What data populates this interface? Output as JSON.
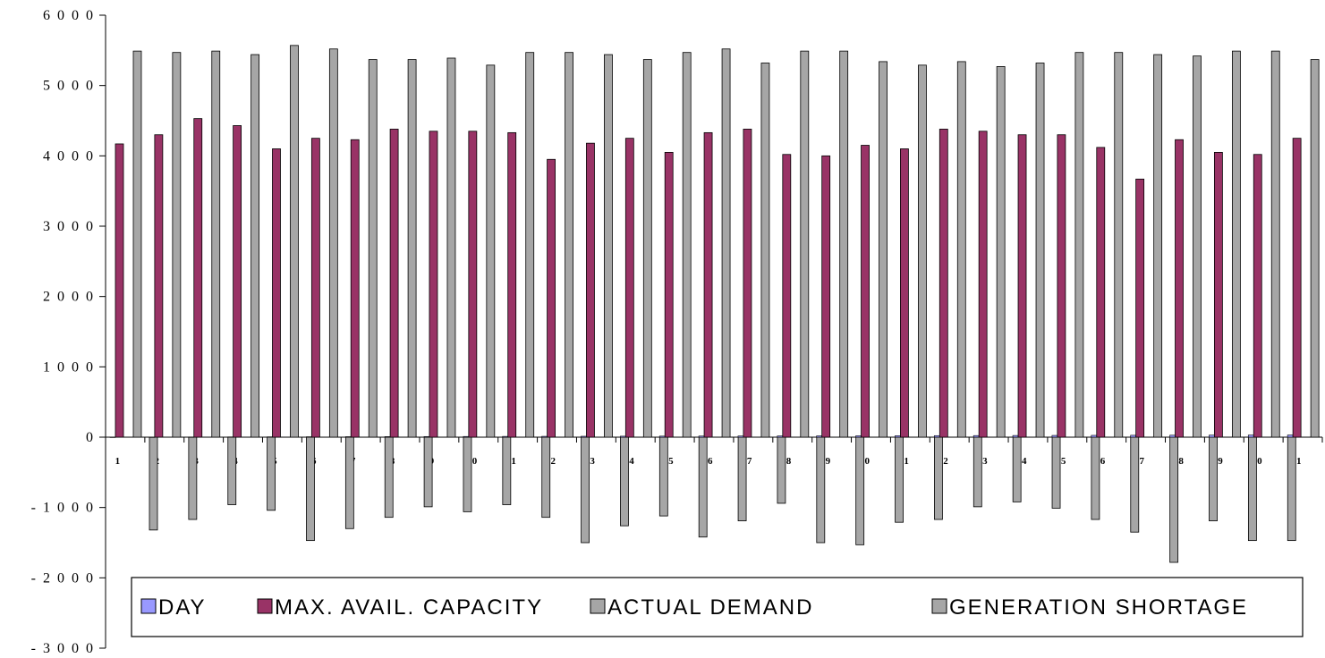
{
  "chart_data": {
    "type": "bar",
    "categories": [
      "1",
      "2",
      "3",
      "4",
      "5",
      "6",
      "7",
      "8",
      "9",
      "10",
      "11",
      "12",
      "13",
      "14",
      "15",
      "16",
      "17",
      "18",
      "19",
      "20",
      "21",
      "22",
      "23",
      "24",
      "25",
      "26",
      "27",
      "28",
      "29",
      "30",
      "31"
    ],
    "y_tick_labels": [
      "6 0 0 0",
      "5 0 0 0",
      "4 0 0 0",
      "3 0 0 0",
      "2 0 0 0",
      "1 0 0 0",
      "0",
      "- 1 0 0 0",
      "- 2 0 0 0",
      "- 3 0 0 0"
    ],
    "y_ticks": [
      6000,
      5000,
      4000,
      3000,
      2000,
      1000,
      0,
      -1000,
      -2000,
      -3000
    ],
    "ylim": [
      -3000,
      6000
    ],
    "grid": false,
    "legend_position": "bottom",
    "series": [
      {
        "name": "DAY",
        "color": "#9999ff",
        "values": [
          1,
          2,
          3,
          4,
          5,
          6,
          7,
          8,
          9,
          10,
          11,
          12,
          13,
          14,
          15,
          16,
          17,
          18,
          19,
          20,
          21,
          22,
          23,
          24,
          25,
          26,
          27,
          28,
          29,
          30,
          31
        ]
      },
      {
        "name": "MAX. AVAIL. CAPACITY",
        "color": "#993366",
        "values": [
          4170,
          4300,
          4530,
          4430,
          4100,
          4250,
          4230,
          4380,
          4350,
          4350,
          4330,
          3950,
          4180,
          4250,
          4050,
          4330,
          4380,
          4020,
          4000,
          4150,
          4100,
          4380,
          4350,
          4300,
          4300,
          4120,
          3670,
          4230,
          4050,
          4020,
          4250
        ]
      },
      {
        "name": "ACTUAL DEMAND",
        "color": "#a6a6a6",
        "values": [
          5490,
          5470,
          5490,
          5440,
          5570,
          5520,
          5370,
          5370,
          5390,
          5290,
          5470,
          5470,
          5440,
          5370,
          5470,
          5520,
          5320,
          5490,
          5490,
          5340,
          5290,
          5340,
          5270,
          5320,
          5470,
          5470,
          5440,
          5420,
          5490,
          5490,
          5370
        ]
      },
      {
        "name": "GENERATION SHORTAGE",
        "color": "#a6a6a6",
        "values": [
          -1320,
          -1170,
          -960,
          -1040,
          -1470,
          -1300,
          -1140,
          -990,
          -1060,
          -960,
          -1140,
          -1500,
          -1260,
          -1120,
          -1420,
          -1190,
          -940,
          -1500,
          -1530,
          -1210,
          -1170,
          -990,
          -920,
          -1010,
          -1170,
          -1350,
          -1780,
          -1190,
          -1470,
          -1470,
          -1120
        ]
      }
    ]
  }
}
